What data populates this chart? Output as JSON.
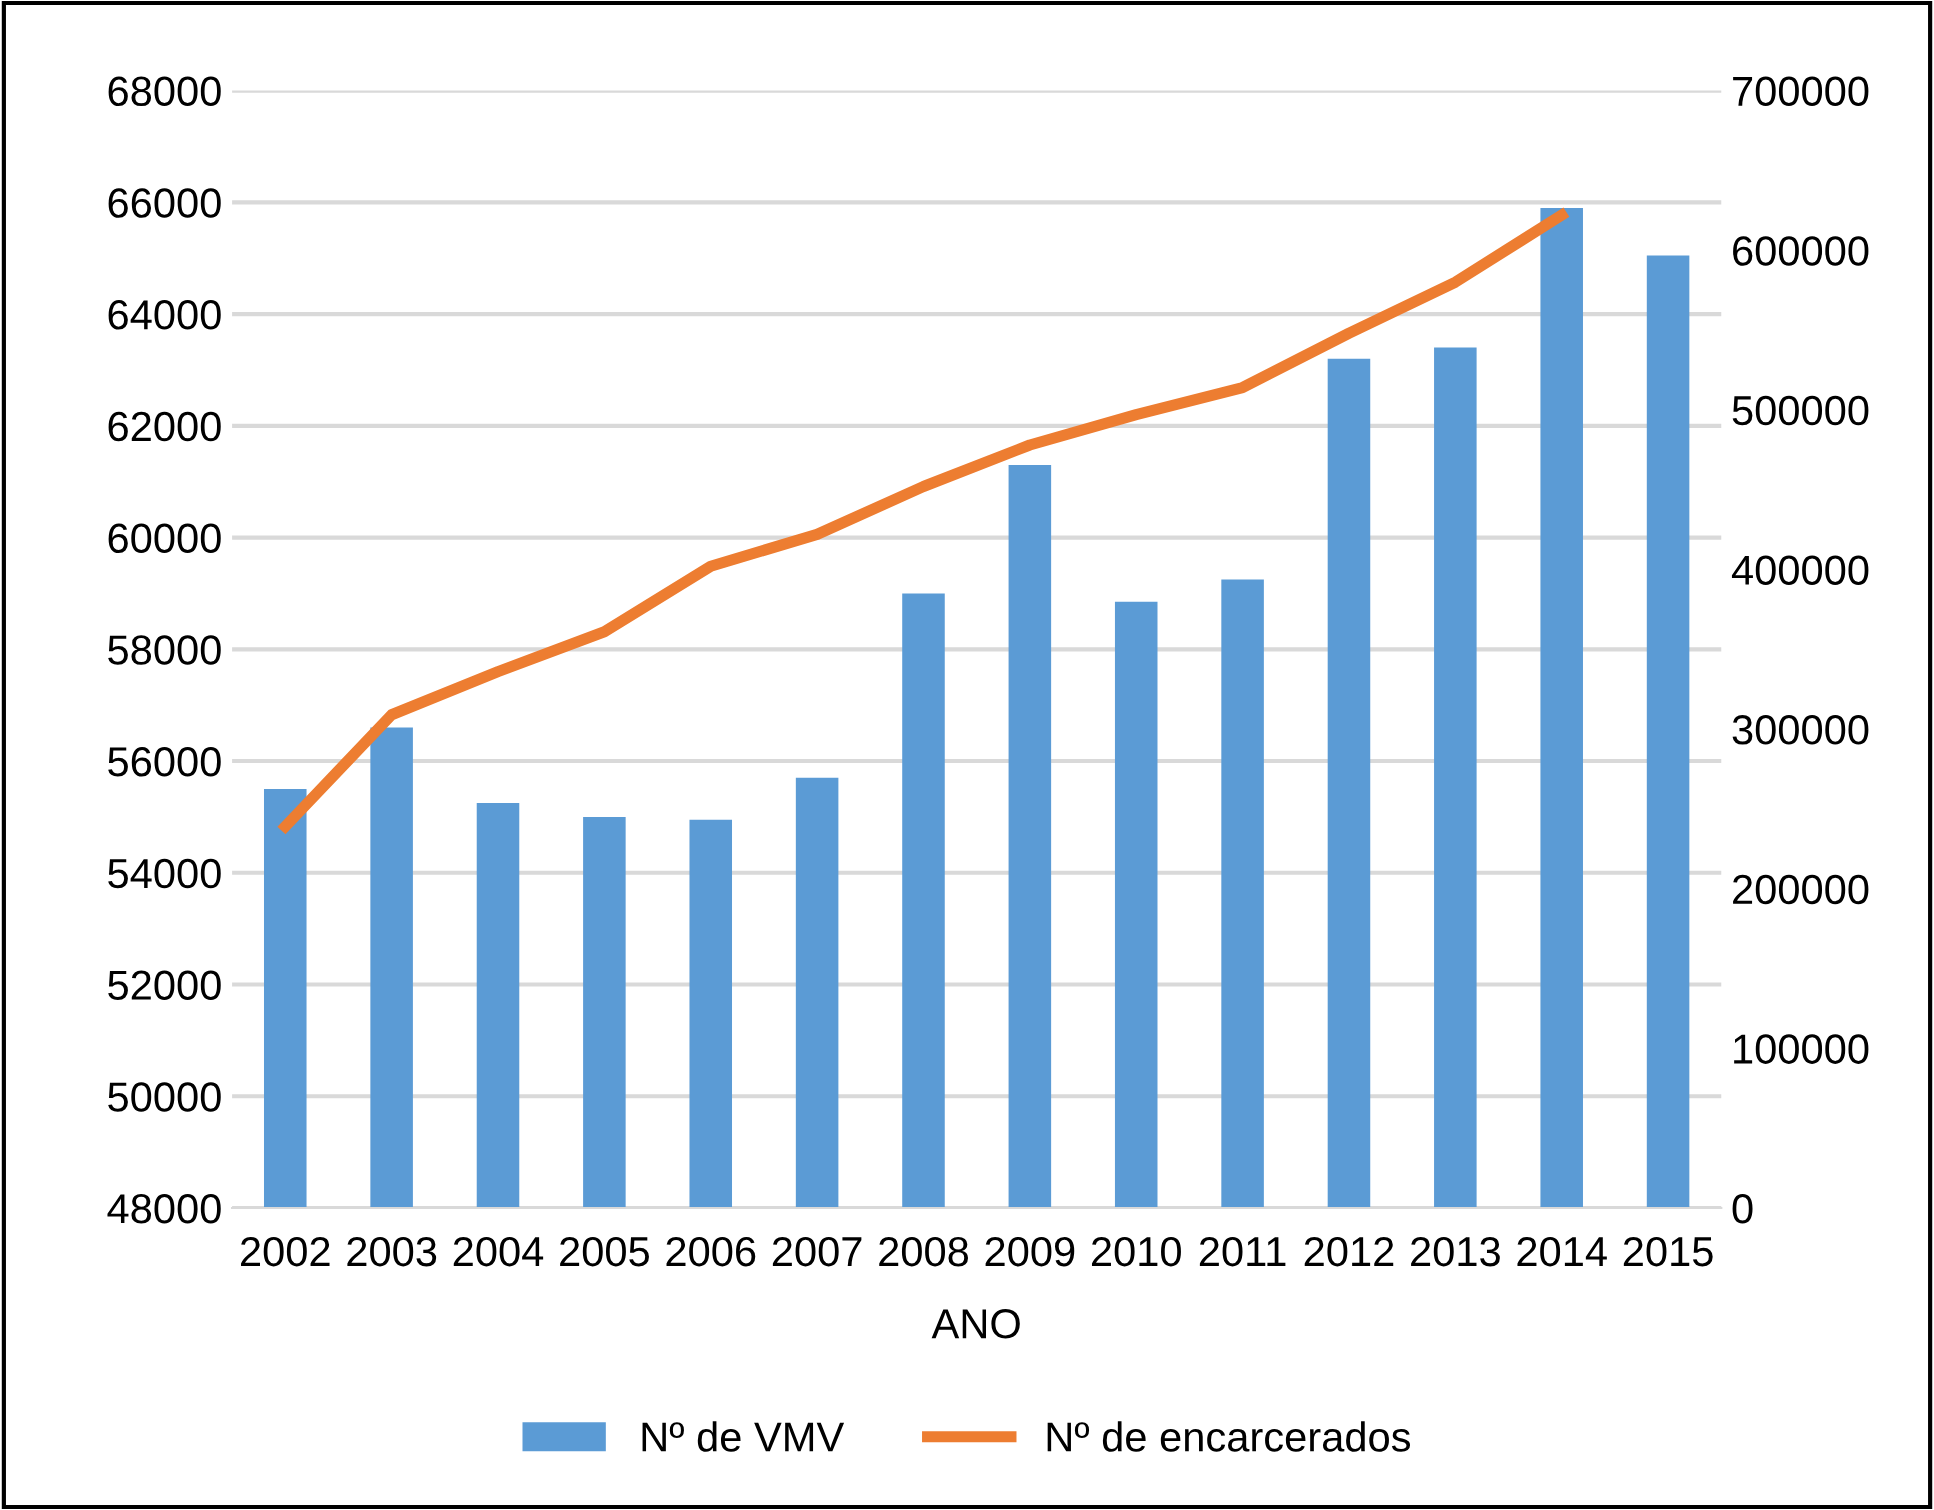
{
  "chart_data": {
    "type": "bar",
    "xlabel": "ANO",
    "categories": [
      "2002",
      "2003",
      "2004",
      "2005",
      "2006",
      "2007",
      "2008",
      "2009",
      "2010",
      "2011",
      "2012",
      "2013",
      "2014",
      "2015"
    ],
    "series": [
      {
        "name": "Nº de VMV",
        "color": "#5b9bd5",
        "values": [
          55500,
          56600,
          55250,
          55000,
          54950,
          55700,
          59000,
          61300,
          58850,
          59250,
          63200,
          63400,
          65900,
          65050
        ]
      },
      {
        "name": "Nº de encarcerados",
        "type": "line",
        "axis": "y2",
        "color": "#ed7d31",
        "values": [
          239000,
          309000,
          336000,
          361000,
          402000,
          422000,
          452000,
          478000,
          497000,
          514000,
          548000,
          580000,
          622000,
          null
        ]
      }
    ],
    "ylim": [
      48000,
      68000
    ],
    "yticks": [
      48000,
      50000,
      52000,
      54000,
      56000,
      58000,
      60000,
      62000,
      64000,
      66000,
      68000
    ],
    "y2lim": [
      0,
      700000
    ],
    "y2ticks": [
      0,
      100000,
      200000,
      300000,
      400000,
      500000,
      600000,
      700000
    ],
    "grid": "y",
    "legend": "bottom",
    "marker": "none",
    "line_style": "solid"
  }
}
